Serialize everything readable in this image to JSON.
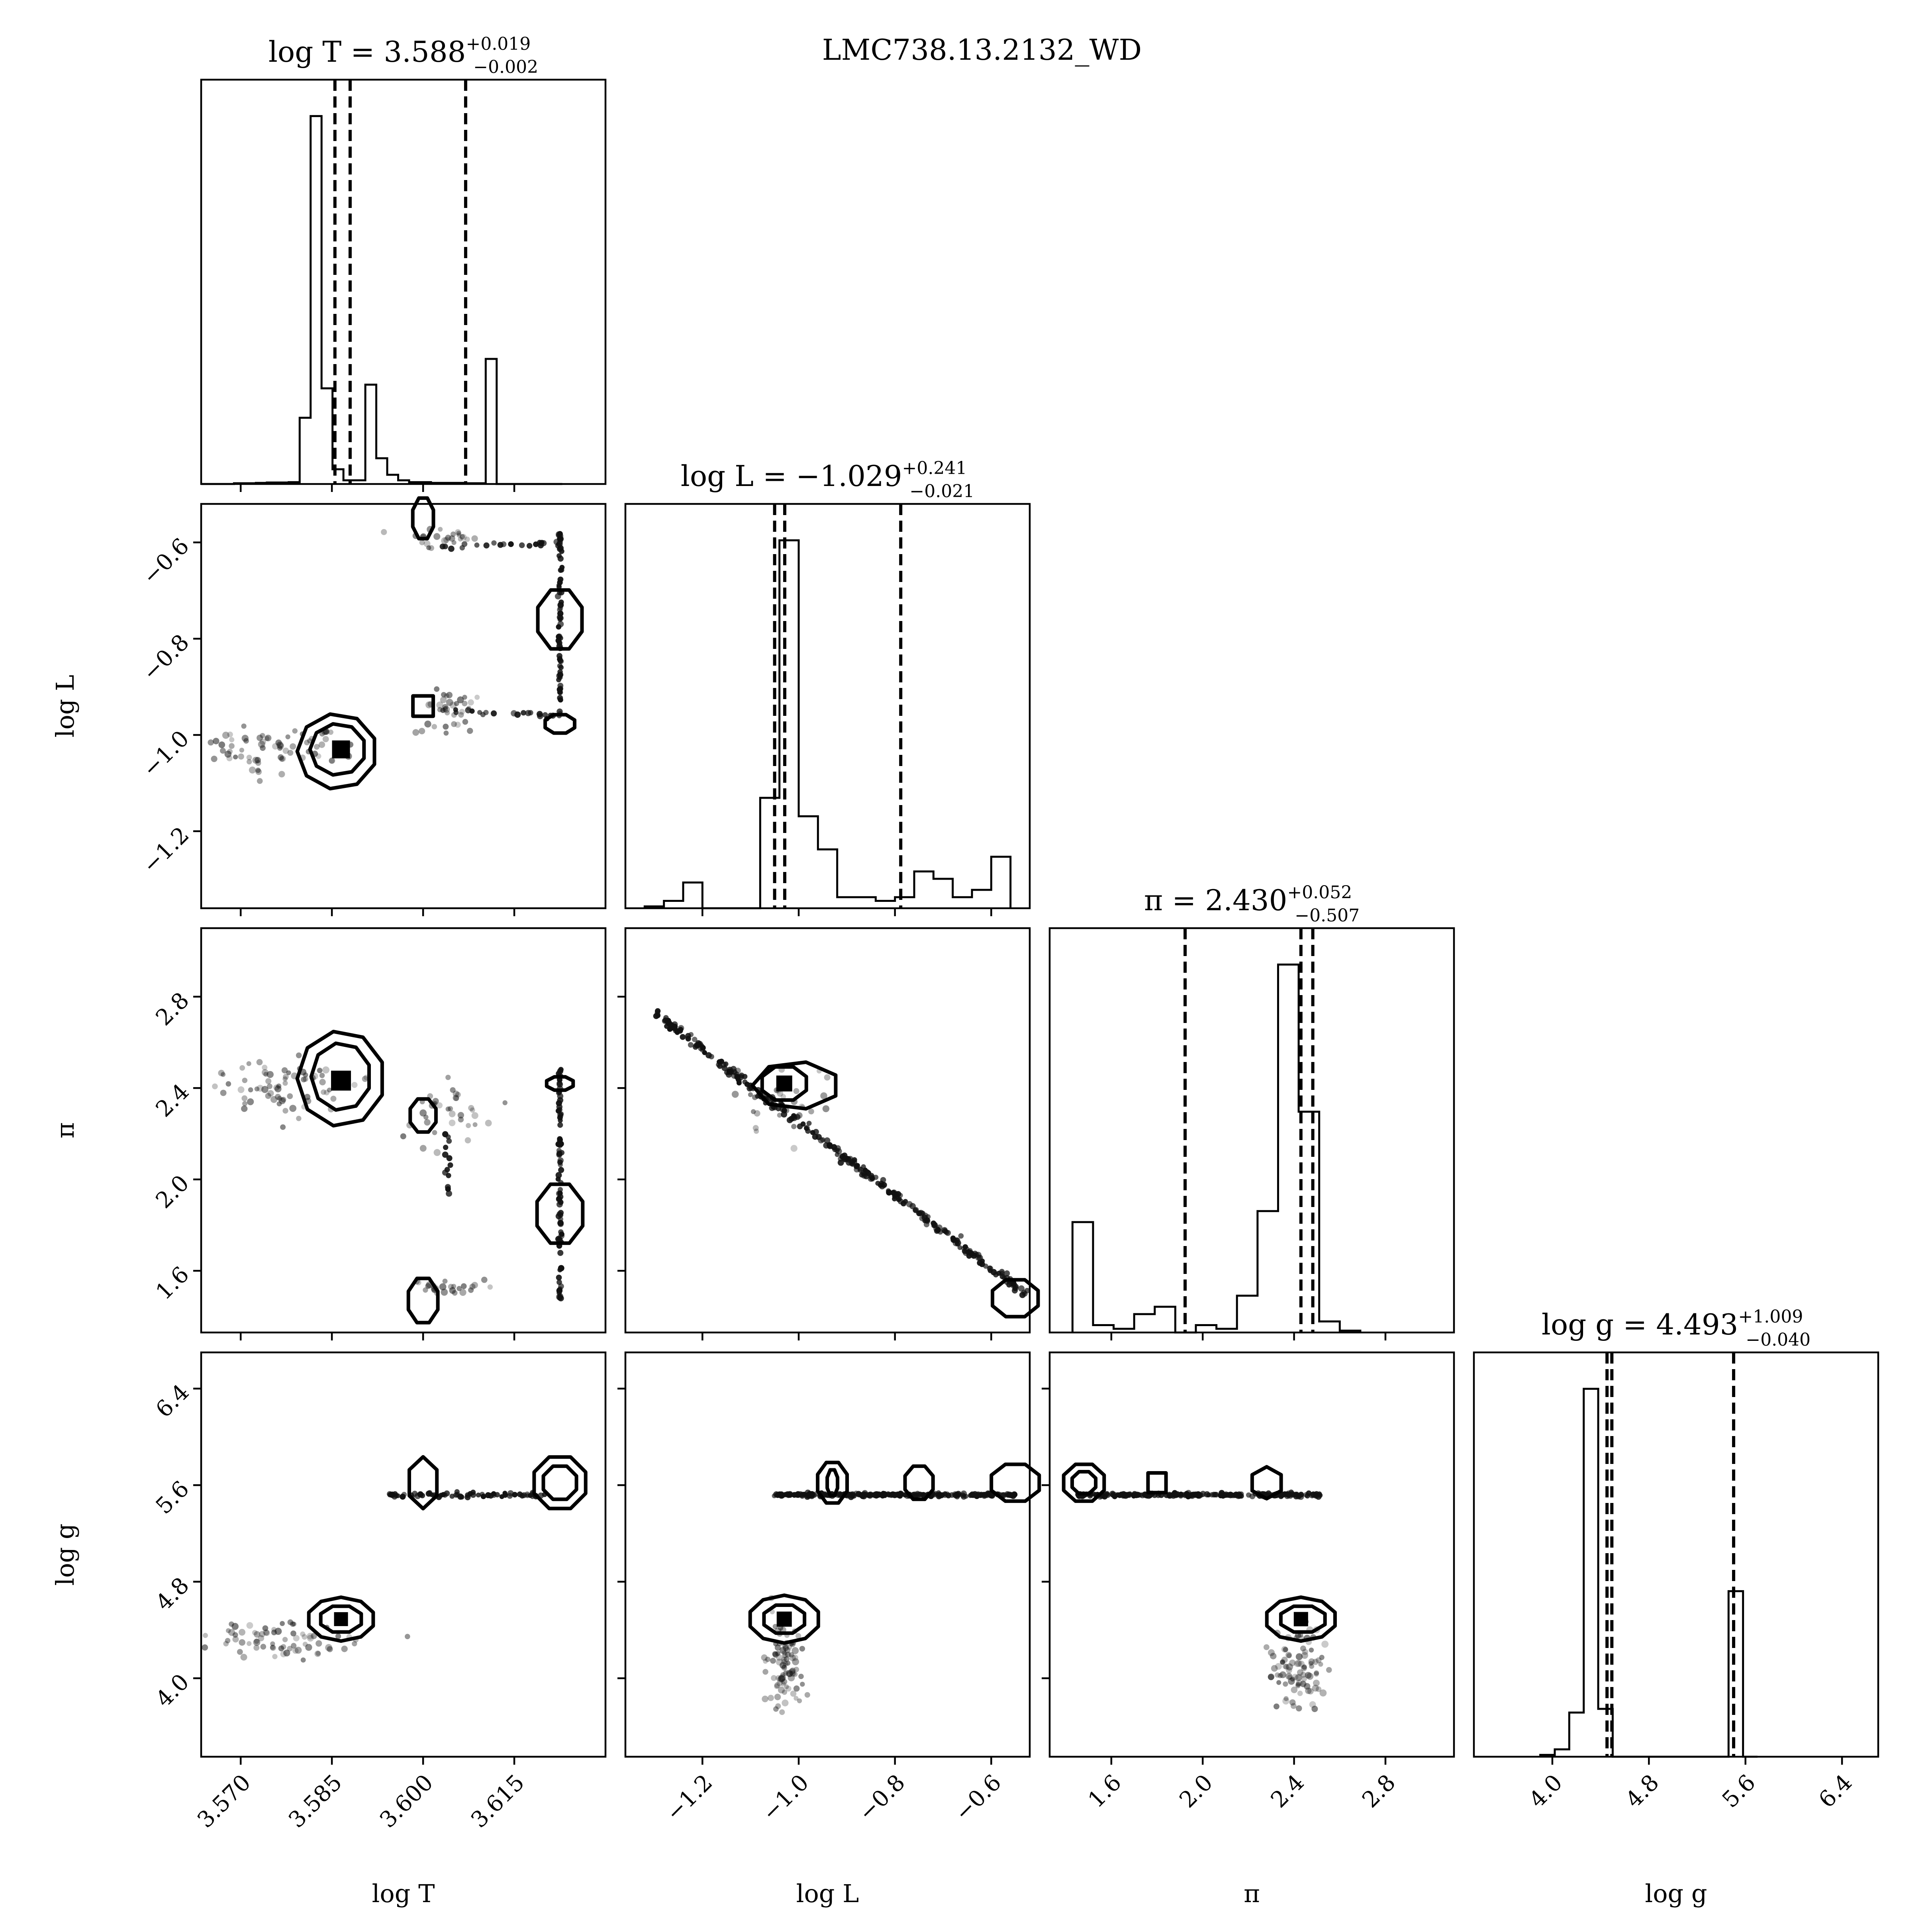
{
  "figure_title": "LMC738.13.2132_WD",
  "chart_data": {
    "type": "corner",
    "parameters": [
      {
        "key": "logT",
        "label": "log T",
        "range": [
          3.5635,
          3.63
        ],
        "ticks": [
          3.57,
          3.585,
          3.6,
          3.615
        ],
        "tick_labels": [
          "3.570",
          "3.585",
          "3.600",
          "3.615"
        ],
        "title_prefix": "log T = ",
        "value": "3.588",
        "plus": "+0.019",
        "minus": "−0.002",
        "quantiles": [
          3.5855,
          3.588,
          3.607
        ]
      },
      {
        "key": "logL",
        "label": "log L",
        "range": [
          -1.36,
          -0.52
        ],
        "ticks": [
          -1.2,
          -1.0,
          -0.8,
          -0.6
        ],
        "tick_labels": [
          "−1.2",
          "−1.0",
          "−0.8",
          "−0.6"
        ],
        "title_prefix": "log L = ",
        "value": "−1.029",
        "plus": "+0.241",
        "minus": "−0.021",
        "quantiles": [
          -1.05,
          -1.029,
          -0.788
        ]
      },
      {
        "key": "pi",
        "label": "π",
        "range": [
          1.33,
          3.1
        ],
        "ticks": [
          1.6,
          2.0,
          2.4,
          2.8
        ],
        "tick_labels": [
          "1.6",
          "2.0",
          "2.4",
          "2.8"
        ],
        "title_prefix": "π = ",
        "value": "2.430",
        "plus": "+0.052",
        "minus": "−0.507",
        "quantiles": [
          1.923,
          2.43,
          2.482
        ]
      },
      {
        "key": "logg",
        "label": "log g",
        "range": [
          3.35,
          6.7
        ],
        "ticks": [
          4.0,
          4.8,
          5.6,
          6.4
        ],
        "tick_labels": [
          "4.0",
          "4.8",
          "5.6",
          "6.4"
        ],
        "title_prefix": "log g = ",
        "value": "4.493",
        "plus": "+1.009",
        "minus": "−0.040",
        "quantiles": [
          4.453,
          4.493,
          5.502
        ]
      }
    ],
    "histograms": {
      "logT": {
        "bins": [
          3.5635,
          3.5653,
          3.5671,
          3.5689,
          3.5707,
          3.5725,
          3.5743,
          3.5761,
          3.5779,
          3.5797,
          3.5815,
          3.5833,
          3.5851,
          3.5869,
          3.5887,
          3.5905,
          3.5923,
          3.5941,
          3.5959,
          3.5977,
          3.5995,
          3.6013,
          3.6031,
          3.6049,
          3.6067,
          3.6085,
          3.6103,
          3.6121,
          3.6139,
          3.6157,
          3.6175,
          3.6193,
          3.6211,
          3.6229
        ],
        "counts": [
          0,
          0,
          0,
          0.002,
          0.002,
          0.003,
          0.004,
          0.004,
          0.005,
          0.18,
          1.0,
          0.26,
          0.04,
          0.01,
          0.01,
          0.27,
          0.07,
          0.025,
          0.01,
          0.005,
          0.005,
          0.003,
          0.003,
          0.003,
          0.002,
          0.002,
          0.34,
          0,
          0,
          0,
          0,
          0,
          0
        ]
      },
      "logL": {
        "edges": [
          -1.32,
          -1.28,
          -1.24,
          -1.2,
          -1.16,
          -1.12,
          -1.08,
          -1.04,
          -1.0,
          -0.96,
          -0.92,
          -0.88,
          -0.84,
          -0.8,
          -0.76,
          -0.72,
          -0.68,
          -0.64,
          -0.6,
          -0.56
        ],
        "counts": [
          0.005,
          0.02,
          0.07,
          0.0,
          0.0,
          0.0,
          0.3,
          1.0,
          0.25,
          0.16,
          0.03,
          0.03,
          0.02,
          0.03,
          0.1,
          0.08,
          0.03,
          0.05,
          0.14
        ]
      },
      "pi": {
        "edges": [
          1.43,
          1.52,
          1.61,
          1.7,
          1.79,
          1.88,
          1.97,
          2.06,
          2.15,
          2.24,
          2.33,
          2.42,
          2.51,
          2.6,
          2.69
        ],
        "counts": [
          0.3,
          0.02,
          0.01,
          0.05,
          0.07,
          0.0,
          0.02,
          0.01,
          0.1,
          0.33,
          1.0,
          0.6,
          0.03,
          0.005
        ]
      },
      "logg": {
        "edges": [
          3.9,
          4.02,
          4.14,
          4.26,
          4.38,
          4.5,
          4.62,
          4.74,
          4.86,
          4.98,
          5.1,
          5.22,
          5.34,
          5.46,
          5.58,
          5.7
        ],
        "counts": [
          0.005,
          0.02,
          0.12,
          1.0,
          0.13,
          0.0,
          0.0,
          0.0,
          0.0,
          0.0,
          0.0,
          0.0,
          0.0,
          0.45,
          0.0
        ]
      }
    },
    "peaks_2d": [
      {
        "x": "logT",
        "y": "logL",
        "modes": [
          [
            3.5865,
            -1.03
          ],
          [
            3.6,
            -0.55
          ],
          [
            3.6225,
            -0.76
          ],
          [
            3.6,
            -0.94
          ],
          [
            3.6225,
            -0.97
          ]
        ]
      },
      {
        "x": "logT",
        "y": "pi",
        "modes": [
          [
            3.5865,
            2.45
          ],
          [
            3.6,
            2.28
          ],
          [
            3.6225,
            1.85
          ],
          [
            3.6,
            1.47
          ],
          [
            3.6225,
            2.42
          ]
        ]
      },
      {
        "x": "logL",
        "y": "pi",
        "modes": [
          [
            -1.03,
            2.42
          ],
          [
            -0.55,
            1.48
          ]
        ]
      },
      {
        "x": "logT",
        "y": "logg",
        "modes": [
          [
            3.5865,
            4.49
          ],
          [
            3.6,
            5.62
          ],
          [
            3.6225,
            5.62
          ]
        ]
      },
      {
        "x": "logL",
        "y": "logg",
        "modes": [
          [
            -1.03,
            4.49
          ],
          [
            -0.93,
            5.62
          ],
          [
            -0.75,
            5.62
          ],
          [
            -0.55,
            5.62
          ]
        ]
      },
      {
        "x": "pi",
        "y": "logg",
        "modes": [
          [
            2.43,
            4.49
          ],
          [
            1.48,
            5.62
          ],
          [
            1.8,
            5.62
          ],
          [
            2.28,
            5.62
          ]
        ]
      }
    ]
  }
}
